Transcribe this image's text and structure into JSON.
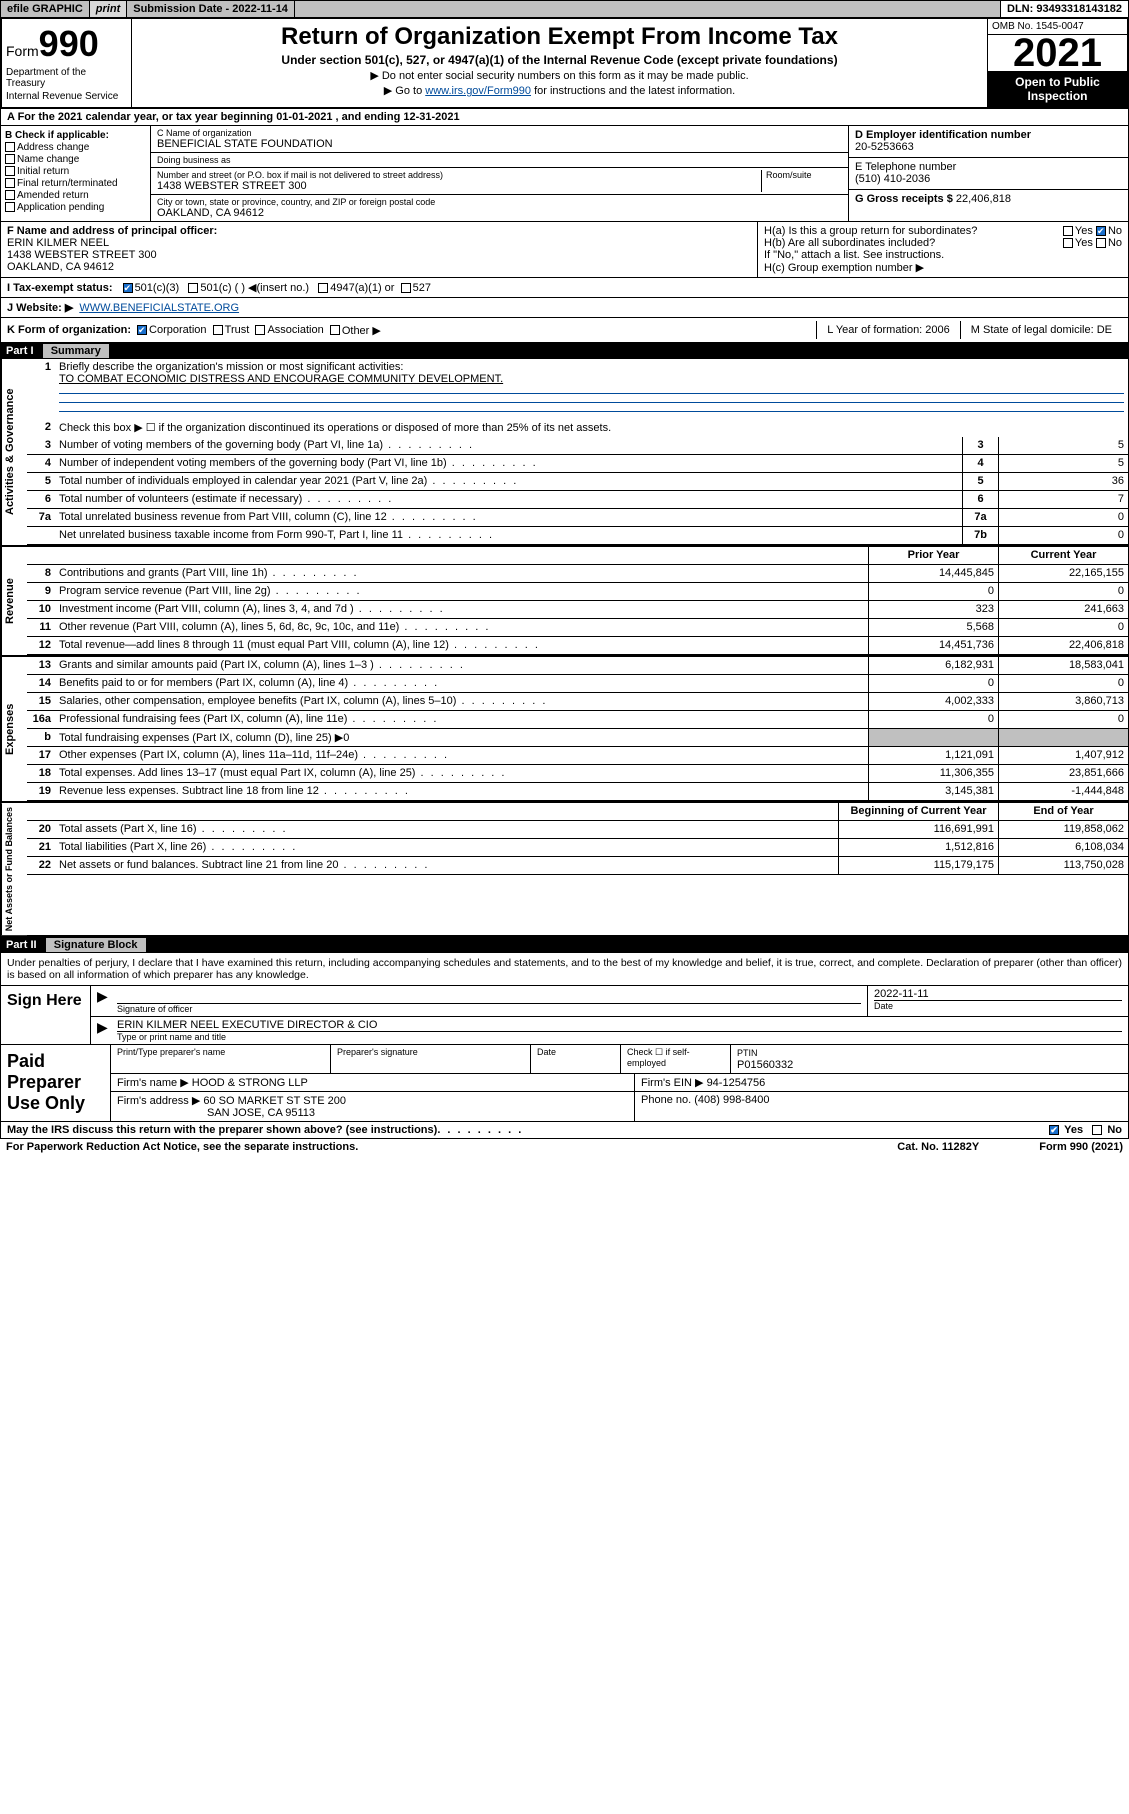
{
  "topbar": {
    "efile": "efile GRAPHIC",
    "print": "print",
    "submission": "Submission Date - 2022-11-14",
    "dln": "DLN: 93493318143182"
  },
  "header": {
    "form_prefix": "Form",
    "form_number": "990",
    "title": "Return of Organization Exempt From Income Tax",
    "subtitle": "Under section 501(c), 527, or 4947(a)(1) of the Internal Revenue Code (except private foundations)",
    "note1": "▶ Do not enter social security numbers on this form as it may be made public.",
    "note2_pre": "▶ Go to ",
    "note2_link": "www.irs.gov/Form990",
    "note2_post": " for instructions and the latest information.",
    "dept": "Department of the Treasury",
    "irs": "Internal Revenue Service",
    "omb": "OMB No. 1545-0047",
    "year": "2021",
    "open": "Open to Public Inspection"
  },
  "row_a": "A For the 2021 calendar year, or tax year beginning 01-01-2021   , and ending 12-31-2021",
  "section_b": {
    "title": "B Check if applicable:",
    "items": [
      "Address change",
      "Name change",
      "Initial return",
      "Final return/terminated",
      "Amended return",
      "Application pending"
    ]
  },
  "section_c": {
    "name_label": "C Name of organization",
    "name": "BENEFICIAL STATE FOUNDATION",
    "dba_label": "Doing business as",
    "dba": "",
    "street_label": "Number and street (or P.O. box if mail is not delivered to street address)",
    "suite_label": "Room/suite",
    "street": "1438 WEBSTER STREET 300",
    "city_label": "City or town, state or province, country, and ZIP or foreign postal code",
    "city": "OAKLAND, CA  94612"
  },
  "section_d": {
    "label": "D Employer identification number",
    "value": "20-5253663"
  },
  "section_e": {
    "label": "E Telephone number",
    "value": "(510) 410-2036"
  },
  "section_g": {
    "label": "G Gross receipts $",
    "value": "22,406,818"
  },
  "section_f": {
    "label": "F  Name and address of principal officer:",
    "name": "ERIN KILMER NEEL",
    "street": "1438 WEBSTER STREET 300",
    "city": "OAKLAND, CA  94612"
  },
  "section_h": {
    "ha": "H(a)  Is this a group return for subordinates?",
    "hb": "H(b)  Are all subordinates included?",
    "hb_note": "If \"No,\" attach a list. See instructions.",
    "hc": "H(c)  Group exemption number ▶"
  },
  "row_i": {
    "label": "I   Tax-exempt status:",
    "opts": [
      "501(c)(3)",
      "501(c) (  ) ◀(insert no.)",
      "4947(a)(1) or",
      "527"
    ]
  },
  "row_j": {
    "label": "J   Website: ▶",
    "value": "WWW.BENEFICIALSTATE.ORG"
  },
  "row_k": {
    "label": "K Form of organization:",
    "opts": [
      "Corporation",
      "Trust",
      "Association",
      "Other ▶"
    ],
    "l": "L Year of formation: 2006",
    "m": "M State of legal domicile: DE"
  },
  "part1": {
    "title": "Part I",
    "name": "Summary"
  },
  "gov": {
    "label": "Activities & Governance",
    "l1": "Briefly describe the organization's mission or most significant activities:",
    "l1v": "TO COMBAT ECONOMIC DISTRESS AND ENCOURAGE COMMUNITY DEVELOPMENT.",
    "l2": "Check this box ▶ ☐ if the organization discontinued its operations or disposed of more than 25% of its net assets.",
    "rows": [
      {
        "n": "3",
        "d": "Number of voting members of the governing body (Part VI, line 1a)",
        "b": "3",
        "v": "5"
      },
      {
        "n": "4",
        "d": "Number of independent voting members of the governing body (Part VI, line 1b)",
        "b": "4",
        "v": "5"
      },
      {
        "n": "5",
        "d": "Total number of individuals employed in calendar year 2021 (Part V, line 2a)",
        "b": "5",
        "v": "36"
      },
      {
        "n": "6",
        "d": "Total number of volunteers (estimate if necessary)",
        "b": "6",
        "v": "7"
      },
      {
        "n": "7a",
        "d": "Total unrelated business revenue from Part VIII, column (C), line 12",
        "b": "7a",
        "v": "0"
      },
      {
        "n": "",
        "d": "Net unrelated business taxable income from Form 990-T, Part I, line 11",
        "b": "7b",
        "v": "0"
      }
    ]
  },
  "rev": {
    "label": "Revenue",
    "hdr_prior": "Prior Year",
    "hdr_curr": "Current Year",
    "rows": [
      {
        "n": "8",
        "d": "Contributions and grants (Part VIII, line 1h)",
        "p": "14,445,845",
        "c": "22,165,155"
      },
      {
        "n": "9",
        "d": "Program service revenue (Part VIII, line 2g)",
        "p": "0",
        "c": "0"
      },
      {
        "n": "10",
        "d": "Investment income (Part VIII, column (A), lines 3, 4, and 7d )",
        "p": "323",
        "c": "241,663"
      },
      {
        "n": "11",
        "d": "Other revenue (Part VIII, column (A), lines 5, 6d, 8c, 9c, 10c, and 11e)",
        "p": "5,568",
        "c": "0"
      },
      {
        "n": "12",
        "d": "Total revenue—add lines 8 through 11 (must equal Part VIII, column (A), line 12)",
        "p": "14,451,736",
        "c": "22,406,818"
      }
    ]
  },
  "exp": {
    "label": "Expenses",
    "rows": [
      {
        "n": "13",
        "d": "Grants and similar amounts paid (Part IX, column (A), lines 1–3 )",
        "p": "6,182,931",
        "c": "18,583,041"
      },
      {
        "n": "14",
        "d": "Benefits paid to or for members (Part IX, column (A), line 4)",
        "p": "0",
        "c": "0"
      },
      {
        "n": "15",
        "d": "Salaries, other compensation, employee benefits (Part IX, column (A), lines 5–10)",
        "p": "4,002,333",
        "c": "3,860,713"
      },
      {
        "n": "16a",
        "d": "Professional fundraising fees (Part IX, column (A), line 11e)",
        "p": "0",
        "c": "0"
      },
      {
        "n": "b",
        "d": "Total fundraising expenses (Part IX, column (D), line 25) ▶0",
        "p": "",
        "c": "",
        "shade": true
      },
      {
        "n": "17",
        "d": "Other expenses (Part IX, column (A), lines 11a–11d, 11f–24e)",
        "p": "1,121,091",
        "c": "1,407,912"
      },
      {
        "n": "18",
        "d": "Total expenses. Add lines 13–17 (must equal Part IX, column (A), line 25)",
        "p": "11,306,355",
        "c": "23,851,666"
      },
      {
        "n": "19",
        "d": "Revenue less expenses. Subtract line 18 from line 12",
        "p": "3,145,381",
        "c": "-1,444,848"
      }
    ]
  },
  "net": {
    "label": "Net Assets or Fund Balances",
    "hdr_l": "Beginning of Current Year",
    "hdr_r": "End of Year",
    "rows": [
      {
        "n": "20",
        "d": "Total assets (Part X, line 16)",
        "p": "116,691,991",
        "c": "119,858,062"
      },
      {
        "n": "21",
        "d": "Total liabilities (Part X, line 26)",
        "p": "1,512,816",
        "c": "6,108,034"
      },
      {
        "n": "22",
        "d": "Net assets or fund balances. Subtract line 21 from line 20",
        "p": "115,179,175",
        "c": "113,750,028"
      }
    ]
  },
  "part2": {
    "title": "Part II",
    "name": "Signature Block"
  },
  "sig": {
    "decl": "Under penalties of perjury, I declare that I have examined this return, including accompanying schedules and statements, and to the best of my knowledge and belief, it is true, correct, and complete. Declaration of preparer (other than officer) is based on all information of which preparer has any knowledge.",
    "sign_here": "Sign Here",
    "sig_officer": "Signature of officer",
    "date": "2022-11-11",
    "date_label": "Date",
    "name": "ERIN KILMER NEEL  EXECUTIVE DIRECTOR & CIO",
    "name_label": "Type or print name and title"
  },
  "prep": {
    "label": "Paid Preparer Use Only",
    "h1": "Print/Type preparer's name",
    "h2": "Preparer's signature",
    "h3": "Date",
    "h4a": "Check ☐ if self-employed",
    "h4b": "PTIN",
    "ptin": "P01560332",
    "firm_name_l": "Firm's name    ▶",
    "firm_name": "HOOD & STRONG LLP",
    "firm_ein_l": "Firm's EIN ▶",
    "firm_ein": "94-1254756",
    "firm_addr_l": "Firm's address ▶",
    "firm_addr1": "60 SO MARKET ST STE 200",
    "firm_addr2": "SAN JOSE, CA  95113",
    "phone_l": "Phone no.",
    "phone": "(408) 998-8400"
  },
  "discuss": "May the IRS discuss this return with the preparer shown above? (see instructions)",
  "footer": {
    "paperwork": "For Paperwork Reduction Act Notice, see the separate instructions.",
    "cat": "Cat. No. 11282Y",
    "form": "Form 990 (2021)"
  }
}
